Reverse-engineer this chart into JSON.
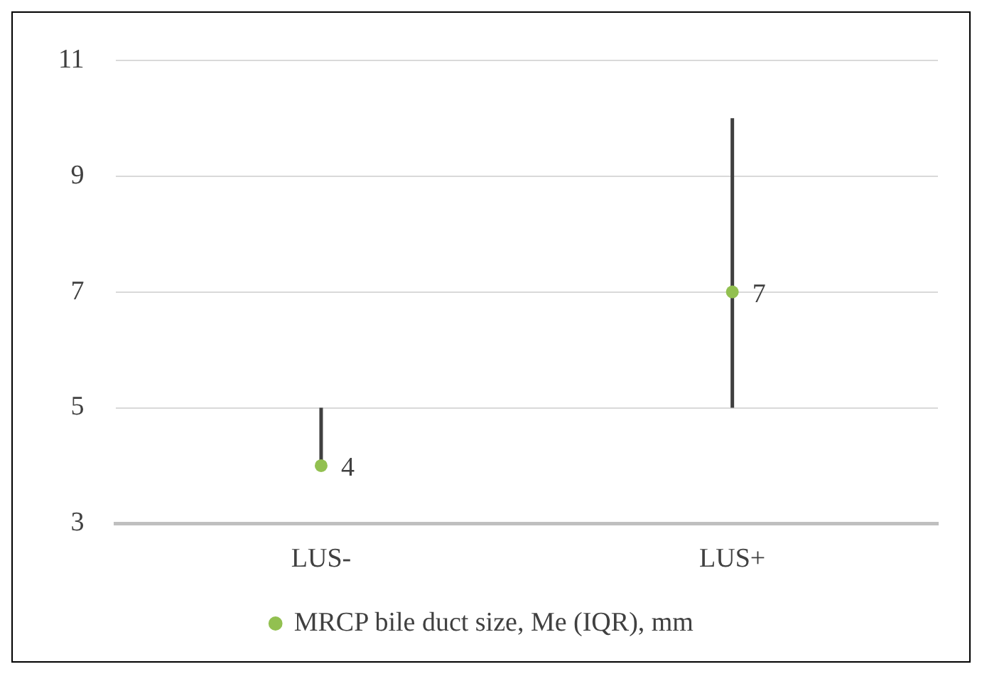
{
  "chart_data": {
    "type": "scatter",
    "categories": [
      "LUS-",
      "LUS+"
    ],
    "series": [
      {
        "name": "MRCP bile duct size, Me (IQR), mm",
        "color": "#92c050",
        "values": [
          4,
          7
        ],
        "errors": [
          [
            4,
            5
          ],
          [
            5,
            10
          ]
        ]
      }
    ],
    "ylim": [
      3,
      11
    ],
    "yticks": [
      3,
      5,
      7,
      9,
      11
    ],
    "grid": "y",
    "legend": "bottom",
    "data_labels": true,
    "marker": "circle"
  }
}
